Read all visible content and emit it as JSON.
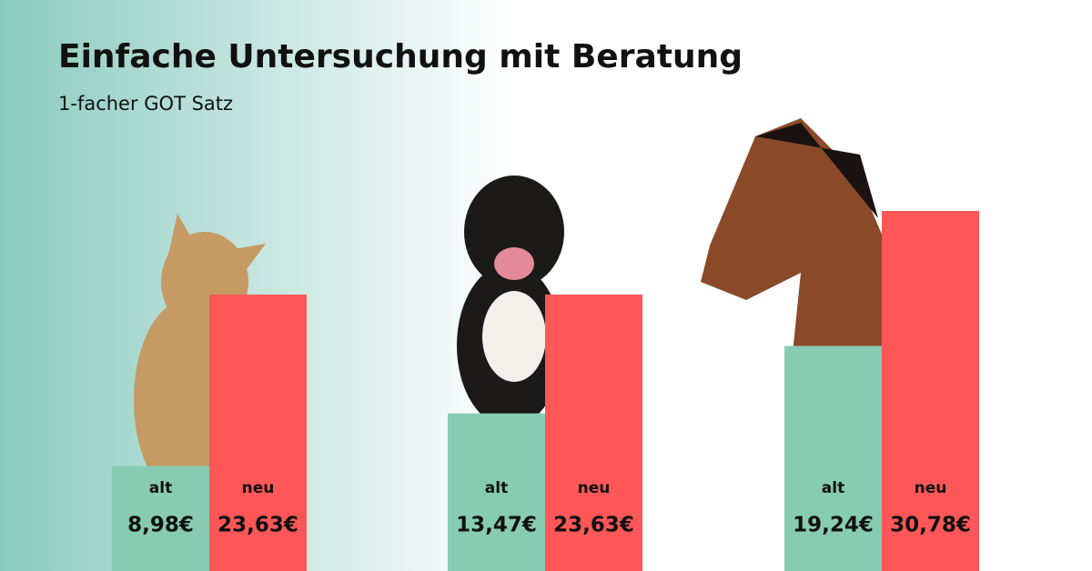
{
  "chart_data": {
    "type": "bar",
    "title": "Einfache Untersuchung mit Beratung",
    "subtitle": "1-facher GOT Satz",
    "categories": [
      null,
      null,
      null
    ],
    "series": [
      {
        "name": "alt",
        "color": "#88cbb3",
        "values": [
          8.98,
          13.47,
          19.24
        ],
        "value_labels": [
          "8,98€",
          "13,47€",
          "19,24€"
        ]
      },
      {
        "name": "neu",
        "color": "#ff5757",
        "values": [
          23.63,
          23.63,
          30.78
        ],
        "value_labels": [
          "23,63€",
          "23,63€",
          "30,78€"
        ]
      }
    ]
  }
}
